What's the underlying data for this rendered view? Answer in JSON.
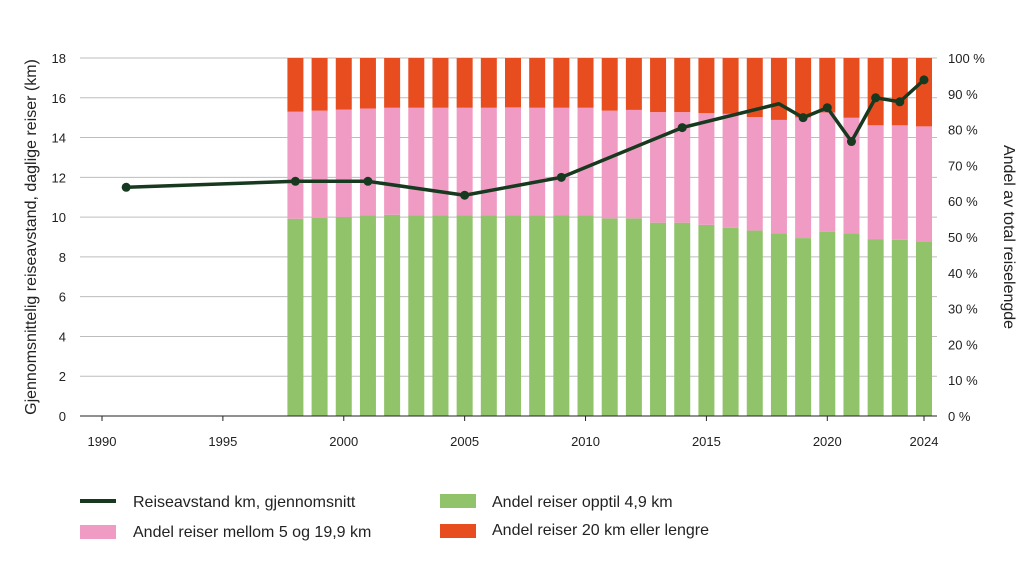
{
  "chart_data": {
    "type": "bar+line",
    "ylabel_left": "Gjennomsnittelig reiseavstand, daglige reiser (km)",
    "ylabel_right": "Andel av total reiselengde",
    "x_ticks": [
      "1990",
      "1995",
      "2000",
      "2005",
      "2010",
      "2015",
      "2020",
      "2024"
    ],
    "x_range": [
      1990,
      2024
    ],
    "y_left_ticks": [
      "0",
      "2",
      "4",
      "6",
      "8",
      "10",
      "12",
      "14",
      "16",
      "18"
    ],
    "y_left_range": [
      0,
      18
    ],
    "y_right_ticks": [
      "0 %",
      "10 %",
      "20 %",
      "30 %",
      "40 %",
      "50 %",
      "60 %",
      "70 %",
      "80 %",
      "90 %",
      "100 %"
    ],
    "y_right_range": [
      0,
      100
    ],
    "grid": true,
    "bar_years": [
      1998,
      1999,
      2000,
      2001,
      2002,
      2003,
      2004,
      2005,
      2006,
      2007,
      2008,
      2009,
      2010,
      2011,
      2012,
      2013,
      2014,
      2015,
      2016,
      2017,
      2018,
      2019,
      2020,
      2021,
      2022,
      2023,
      2024
    ],
    "series": [
      {
        "name": "Andel reiser opptil 4,9 km",
        "type": "bar",
        "color": "#91c36b",
        "values": [
          55.1,
          55.3,
          55.6,
          56.1,
          56.2,
          56.1,
          56.1,
          56.1,
          56.1,
          56.1,
          56.1,
          56.0,
          56.1,
          55.2,
          55.2,
          54.0,
          54.0,
          53.4,
          52.6,
          51.8,
          51.0,
          49.7,
          51.5,
          51.0,
          49.3,
          49.2,
          48.8
        ]
      },
      {
        "name": "Andel reiser mellom 5 og 19,9 km",
        "type": "bar",
        "color": "#f09bc3",
        "values": [
          29.9,
          30.0,
          30.0,
          29.8,
          29.9,
          30.0,
          30.0,
          30.0,
          30.0,
          30.1,
          30.0,
          30.1,
          30.0,
          30.1,
          30.3,
          30.9,
          30.9,
          31.2,
          31.8,
          31.7,
          31.7,
          33.7,
          33.3,
          32.3,
          31.9,
          32.0,
          32.1
        ]
      },
      {
        "name": "Andel reiser 20 km eller lengre",
        "type": "bar",
        "color": "#e84d1f",
        "values": [
          15.0,
          14.7,
          14.4,
          14.1,
          13.9,
          13.9,
          13.9,
          13.9,
          13.9,
          13.8,
          13.9,
          13.9,
          13.9,
          14.7,
          14.5,
          15.1,
          15.1,
          15.4,
          15.6,
          16.5,
          17.3,
          16.6,
          15.2,
          16.7,
          18.8,
          18.8,
          19.1
        ]
      },
      {
        "name": "Reiseavstand km, gjennomsnitt",
        "type": "line",
        "color": "#17391f",
        "x": [
          1991,
          1998,
          2001,
          2005,
          2009,
          2014,
          2018,
          2019,
          2020,
          2021,
          2022,
          2023,
          2024
        ],
        "values": [
          11.5,
          11.8,
          11.8,
          11.1,
          12.0,
          14.5,
          15.7,
          15.0,
          15.5,
          13.8,
          16.0,
          15.8,
          16.9
        ],
        "marker_years": [
          1991,
          1998,
          2001,
          2005,
          2009,
          2014,
          2019,
          2020,
          2021,
          2022,
          2023,
          2024
        ]
      }
    ]
  },
  "legend": {
    "line": "Reiseavstand km, gjennomsnitt",
    "mid": "Andel reiser mellom 5 og 19,9 km",
    "short": "Andel reiser opptil 4,9 km",
    "long": "Andel reiser 20 km eller lengre"
  }
}
